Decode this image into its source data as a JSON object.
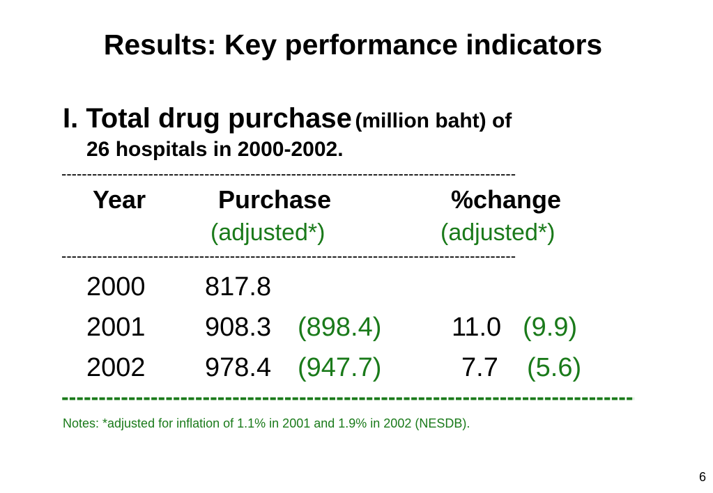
{
  "slide": {
    "title": "Results: Key performance indicators",
    "heading": {
      "main": "I. Total drug purchase",
      "unit": "(million baht)",
      "of": "of",
      "line2": "26 hospitals in 2000-2002."
    },
    "table": {
      "dash_rule": "-----------------------------------------------------------------------------------------",
      "headers": {
        "year": "Year",
        "purchase": "Purchase",
        "change": "%change",
        "purchase_sub": "(adjusted*)",
        "change_sub": "(adjusted*)"
      },
      "rows": [
        {
          "year": "2000",
          "purchase": "817.8",
          "purchase_adj": "",
          "change": "",
          "change_adj": ""
        },
        {
          "year": "2001",
          "purchase": "908.3",
          "purchase_adj": "(898.4)",
          "change": "11.0",
          "change_adj": "(9.9)"
        },
        {
          "year": "2002",
          "purchase": "978.4",
          "purchase_adj": "(947.7)",
          "change": "7.7",
          "change_adj": "(5.6)"
        }
      ]
    },
    "notes": "Notes: *adjusted for inflation of 1.1% in 2001 and 1.9% in 2002 (NESDB).",
    "page_number": "6",
    "colors": {
      "accent_green": "#1a7a1a",
      "text": "#000000",
      "background": "#ffffff"
    }
  }
}
